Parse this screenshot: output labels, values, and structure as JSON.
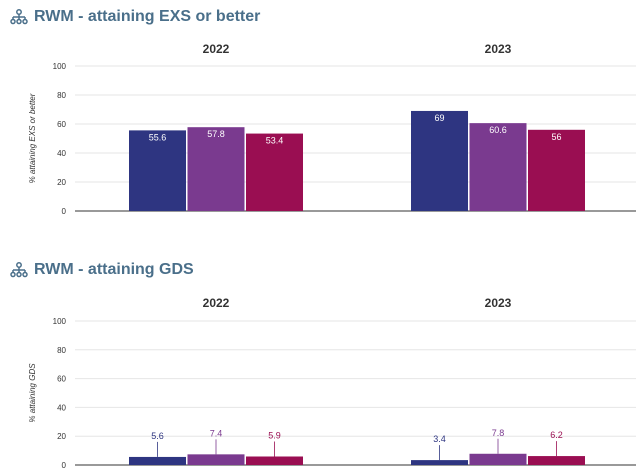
{
  "colors": {
    "title": "#4a6f8a",
    "series": [
      "#2e3581",
      "#7a3a8f",
      "#9a0e52"
    ],
    "grid": "#e6e6e6",
    "axis": "#333333"
  },
  "sections": [
    {
      "title": "RWM - attaining EXS or better",
      "icon": "hierarchy-icon"
    },
    {
      "title": "RWM - attaining GDS",
      "icon": "hierarchy-icon"
    }
  ],
  "chart_data": [
    {
      "type": "bar",
      "title": "RWM - attaining EXS or better",
      "ylabel": "% attaining EXS or better",
      "ylim": [
        0,
        100
      ],
      "yticks": [
        0,
        20,
        40,
        60,
        80,
        100
      ],
      "grid": true,
      "categories": [
        "2022",
        "2023"
      ],
      "series": [
        {
          "values": [
            55.6,
            69
          ]
        },
        {
          "values": [
            57.8,
            60.6
          ]
        },
        {
          "values": [
            53.4,
            56
          ]
        }
      ],
      "label_position": "inside"
    },
    {
      "type": "bar",
      "title": "RWM - attaining GDS",
      "ylabel": "% attaining GDS",
      "ylim": [
        0,
        100
      ],
      "yticks": [
        0,
        20,
        40,
        60,
        80,
        100
      ],
      "grid": true,
      "categories": [
        "2022",
        "2023"
      ],
      "series": [
        {
          "values": [
            5.6,
            3.4
          ]
        },
        {
          "values": [
            7.4,
            7.8
          ]
        },
        {
          "values": [
            5.9,
            6.2
          ]
        }
      ],
      "label_position": "above"
    }
  ]
}
